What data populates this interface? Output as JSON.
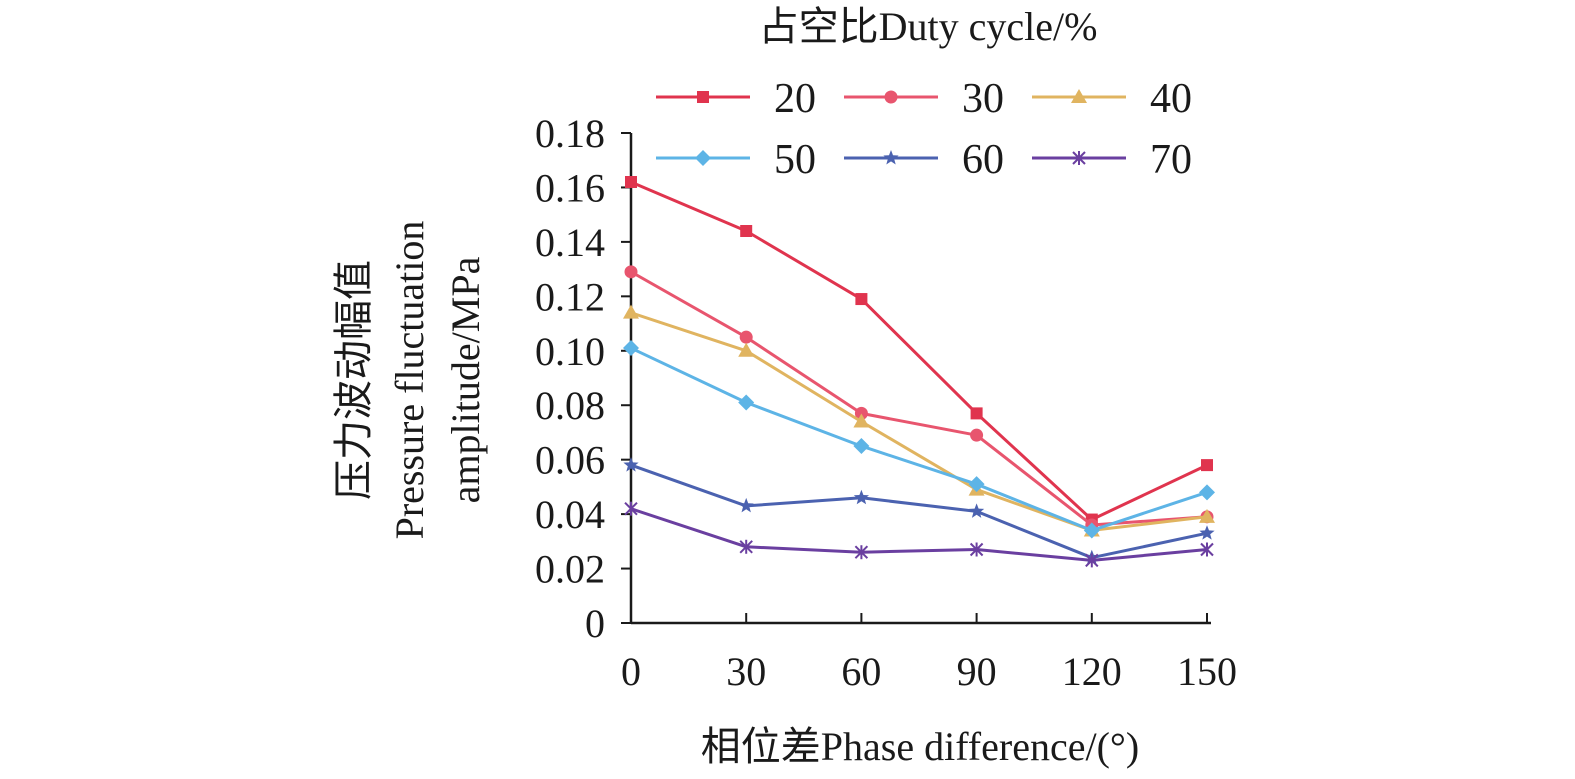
{
  "chart_data": {
    "type": "line",
    "legend_title": "占空比Duty cycle/%",
    "legend_position": "top",
    "xlabel": "相位差Phase difference/(°)",
    "ylabel_lines": [
      "压力波动幅值",
      "Pressure fluctuation",
      "amplitude/MPa"
    ],
    "x": [
      0,
      30,
      60,
      90,
      120,
      150
    ],
    "x_ticks": [
      "0",
      "30",
      "60",
      "90",
      "120",
      "150"
    ],
    "xlim": [
      0,
      150
    ],
    "y_ticks": [
      "0",
      "0.02",
      "0.04",
      "0.06",
      "0.08",
      "0.10",
      "0.12",
      "0.14",
      "0.16",
      "0.18"
    ],
    "ylim": [
      0,
      0.18
    ],
    "grid": false,
    "series": [
      {
        "name": "20",
        "color": "#e0344e",
        "marker": "square",
        "values": [
          0.162,
          0.144,
          0.119,
          0.077,
          0.038,
          0.058
        ]
      },
      {
        "name": "30",
        "color": "#e8556e",
        "marker": "circle",
        "values": [
          0.129,
          0.105,
          0.077,
          0.069,
          0.036,
          0.039
        ]
      },
      {
        "name": "40",
        "color": "#e0b460",
        "marker": "triangle",
        "values": [
          0.114,
          0.1,
          0.074,
          0.049,
          0.034,
          0.039
        ]
      },
      {
        "name": "50",
        "color": "#5db4e6",
        "marker": "diamond",
        "values": [
          0.101,
          0.081,
          0.065,
          0.051,
          0.034,
          0.048
        ]
      },
      {
        "name": "60",
        "color": "#4b62b0",
        "marker": "star",
        "values": [
          0.058,
          0.043,
          0.046,
          0.041,
          0.024,
          0.033
        ]
      },
      {
        "name": "70",
        "color": "#6a3fa0",
        "marker": "asterisk",
        "values": [
          0.042,
          0.028,
          0.026,
          0.027,
          0.023,
          0.027
        ]
      }
    ]
  }
}
